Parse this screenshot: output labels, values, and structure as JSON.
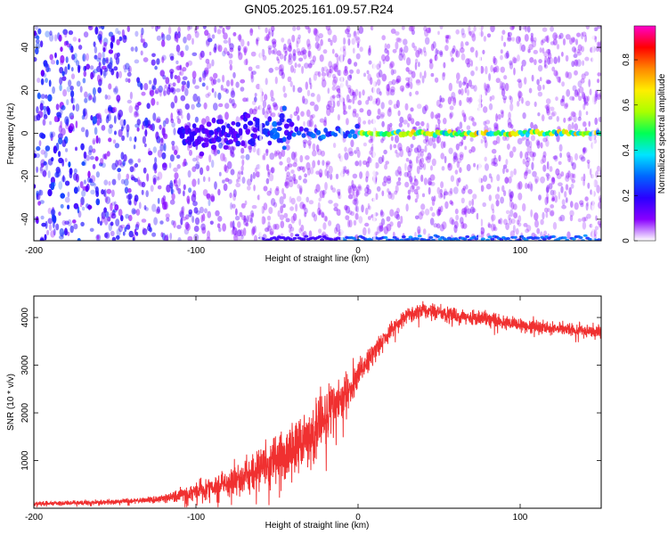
{
  "title": "GN05.2025.161.09.57.R24",
  "chart_data": [
    {
      "type": "heatmap",
      "title": "GN05.2025.161.09.57.R24",
      "xlabel": "Height of straight line (km)",
      "ylabel": "Frequency (Hz)",
      "xlim": [
        -200,
        150
      ],
      "ylim": [
        -50,
        50
      ],
      "x_ticks": [
        -200,
        -100,
        0,
        100
      ],
      "y_ticks": [
        -40,
        -20,
        0,
        20,
        40
      ],
      "colorbar": {
        "label": "Normalized spectral amplitude",
        "range": [
          0,
          0.95
        ],
        "ticks": [
          0,
          0.2,
          0.4,
          0.6,
          0.8
        ],
        "colormap": [
          "#ffffff",
          "#8800ff",
          "#2a00ff",
          "#0066ff",
          "#00e5ff",
          "#00ff55",
          "#aaff00",
          "#ffee00",
          "#ff8800",
          "#ff0000",
          "#ff00cc"
        ]
      },
      "features": {
        "signal_line_frequency_hz": 0,
        "signal_visible_from_km": -90,
        "bottom_edge_band_frequency_hz": -49,
        "blank_gap_km": [
          -60,
          -10,
          10,
          75,
          145
        ]
      }
    },
    {
      "type": "line",
      "xlabel": "Height of straight line (km)",
      "ylabel": "SNR (10 * v/v)",
      "xlim": [
        -200,
        150
      ],
      "ylim": [
        0,
        4450
      ],
      "x_ticks": [
        -200,
        -100,
        0,
        100
      ],
      "y_ticks": [
        1000,
        2000,
        3000,
        4000
      ],
      "color": "#f03030",
      "series": [
        {
          "x": [
            -200,
            -180,
            -160,
            -140,
            -120,
            -110,
            -100,
            -90,
            -80,
            -70,
            -60,
            -50,
            -40,
            -30,
            -20,
            -10,
            0,
            10,
            20,
            30,
            40,
            50,
            60,
            70,
            80,
            90,
            100,
            110,
            120,
            130,
            140,
            150
          ],
          "y": [
            100,
            110,
            120,
            150,
            200,
            280,
            360,
            450,
            560,
            700,
            850,
            1050,
            1250,
            1550,
            1900,
            2350,
            2750,
            3300,
            3700,
            4050,
            4150,
            4100,
            4050,
            4000,
            3950,
            3900,
            3850,
            3820,
            3780,
            3750,
            3720,
            3700
          ],
          "noise": [
            40,
            40,
            45,
            50,
            70,
            130,
            180,
            220,
            280,
            330,
            400,
            450,
            500,
            550,
            520,
            420,
            300,
            220,
            180,
            160,
            150,
            150,
            140,
            140,
            140,
            140,
            130,
            130,
            120,
            120,
            120,
            120
          ]
        }
      ]
    }
  ]
}
